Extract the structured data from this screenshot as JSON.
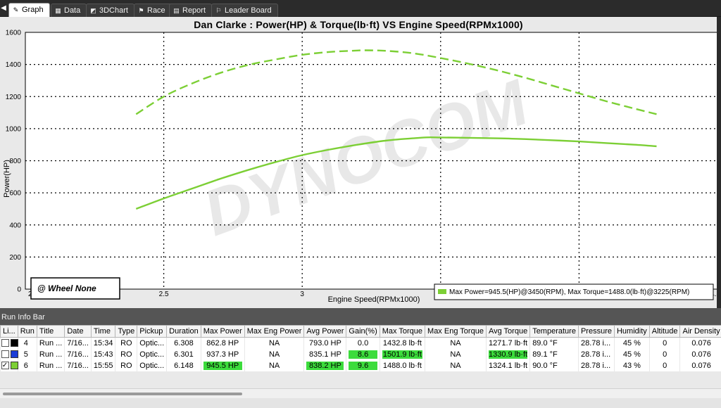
{
  "tabs": [
    {
      "label": "Graph",
      "icon": "graph-icon",
      "active": true
    },
    {
      "label": "Data",
      "icon": "table-icon",
      "active": false
    },
    {
      "label": "3DChart",
      "icon": "3d-chart-icon",
      "active": false
    },
    {
      "label": "Race",
      "icon": "race-flag-icon",
      "active": false
    },
    {
      "label": "Report",
      "icon": "report-icon",
      "active": false
    },
    {
      "label": "Leader Board",
      "icon": "checkered-flag-icon",
      "active": false
    }
  ],
  "chart": {
    "title": "Dan Clarke : Power(HP) & Torque(lb·ft) VS Engine Speed(RPMx1000)",
    "xlabel": "Engine Speed(RPMx1000)",
    "ylabel": "Power(HP)",
    "x_multiplier": "x10^3",
    "watermark": "DYNOCOM",
    "wheel_label": "@ Wheel None",
    "legend_text": "Max Power=945.5(HP)@3450(RPM), Max Torque=1488.0(lb·ft)@3225(RPM)"
  },
  "chart_data": {
    "type": "line",
    "xlim": [
      2,
      4.5
    ],
    "ylim": [
      0,
      1600
    ],
    "x_ticks": [
      "2",
      "2.5",
      "3",
      "3.5",
      "4",
      "4.5"
    ],
    "y_ticks": [
      "0",
      "200",
      "400",
      "600",
      "800",
      "1000",
      "1200",
      "1400",
      "1600"
    ],
    "grid": true,
    "legend_position": "bottom-right",
    "series": [
      {
        "name": "Power",
        "color": "#7ccf35",
        "style": "solid",
        "x": [
          2.4,
          2.5,
          2.6,
          2.7,
          2.8,
          2.9,
          3.0,
          3.1,
          3.2,
          3.3,
          3.4,
          3.45,
          3.5,
          3.6,
          3.7,
          3.8,
          3.9,
          4.0,
          4.1,
          4.2,
          4.28
        ],
        "y": [
          500,
          565,
          625,
          685,
          740,
          790,
          835,
          870,
          900,
          925,
          940,
          945.5,
          945,
          943,
          940,
          935,
          928,
          920,
          910,
          900,
          890
        ]
      },
      {
        "name": "Torque",
        "color": "#7ccf35",
        "style": "dashed",
        "x": [
          2.4,
          2.5,
          2.6,
          2.7,
          2.8,
          2.9,
          3.0,
          3.1,
          3.2,
          3.225,
          3.3,
          3.4,
          3.5,
          3.6,
          3.7,
          3.8,
          3.9,
          4.0,
          4.1,
          4.2,
          4.28
        ],
        "y": [
          1090,
          1200,
          1280,
          1345,
          1395,
          1430,
          1460,
          1478,
          1487,
          1488,
          1485,
          1470,
          1440,
          1405,
          1365,
          1320,
          1270,
          1220,
          1170,
          1125,
          1090
        ]
      }
    ]
  },
  "runinfo": {
    "caption": "Run Info Bar",
    "columns": [
      "Li...",
      "Run",
      "Title",
      "Date",
      "Time",
      "Type",
      "Pickup",
      "Duration",
      "Max Power",
      "Max Eng Power",
      "Avg Power",
      "Gain(%)",
      "Max Torque",
      "Max Eng Torque",
      "Avg Torque",
      "Temperature",
      "Pressure",
      "Humidity",
      "Altitude",
      "Air Density"
    ],
    "rows": [
      {
        "checked": false,
        "swatch": "#000000",
        "run": "4",
        "title": "Run ...",
        "date": "7/16...",
        "time": "15:34",
        "type": "RO",
        "pickup": "Optic...",
        "duration": "6.308",
        "max_power": "862.8 HP",
        "max_eng_power": "NA",
        "avg_power": "793.0 HP",
        "gain": "0.0",
        "max_torque": "1432.8 lb·ft",
        "max_eng_torque": "NA",
        "avg_torque": "1271.7 lb·ft",
        "temperature": "89.0 °F",
        "pressure": "28.78 i...",
        "humidity": "45 %",
        "altitude": "0",
        "air_density": "0.076",
        "hl": []
      },
      {
        "checked": false,
        "swatch": "#1a3cd6",
        "run": "5",
        "title": "Run ...",
        "date": "7/16...",
        "time": "15:43",
        "type": "RO",
        "pickup": "Optic...",
        "duration": "6.301",
        "max_power": "937.3 HP",
        "max_eng_power": "NA",
        "avg_power": "835.1 HP",
        "gain": "8.6",
        "max_torque": "1501.9 lb·ft",
        "max_eng_torque": "NA",
        "avg_torque": "1330.9 lb·ft",
        "temperature": "89.1 °F",
        "pressure": "28.78 i...",
        "humidity": "45 %",
        "altitude": "0",
        "air_density": "0.076",
        "hl": [
          "gain",
          "max_torque",
          "avg_torque"
        ]
      },
      {
        "checked": true,
        "swatch": "#7ccf35",
        "run": "6",
        "title": "Run ...",
        "date": "7/16...",
        "time": "15:55",
        "type": "RO",
        "pickup": "Optic...",
        "duration": "6.148",
        "max_power": "945.5 HP",
        "max_eng_power": "NA",
        "avg_power": "838.2 HP",
        "gain": "9.6",
        "max_torque": "1488.0 lb·ft",
        "max_eng_torque": "NA",
        "avg_torque": "1324.1 lb·ft",
        "temperature": "90.0 °F",
        "pressure": "28.78 i...",
        "humidity": "43 %",
        "altitude": "0",
        "air_density": "0.076",
        "hl": [
          "max_power",
          "avg_power",
          "gain"
        ]
      }
    ]
  }
}
